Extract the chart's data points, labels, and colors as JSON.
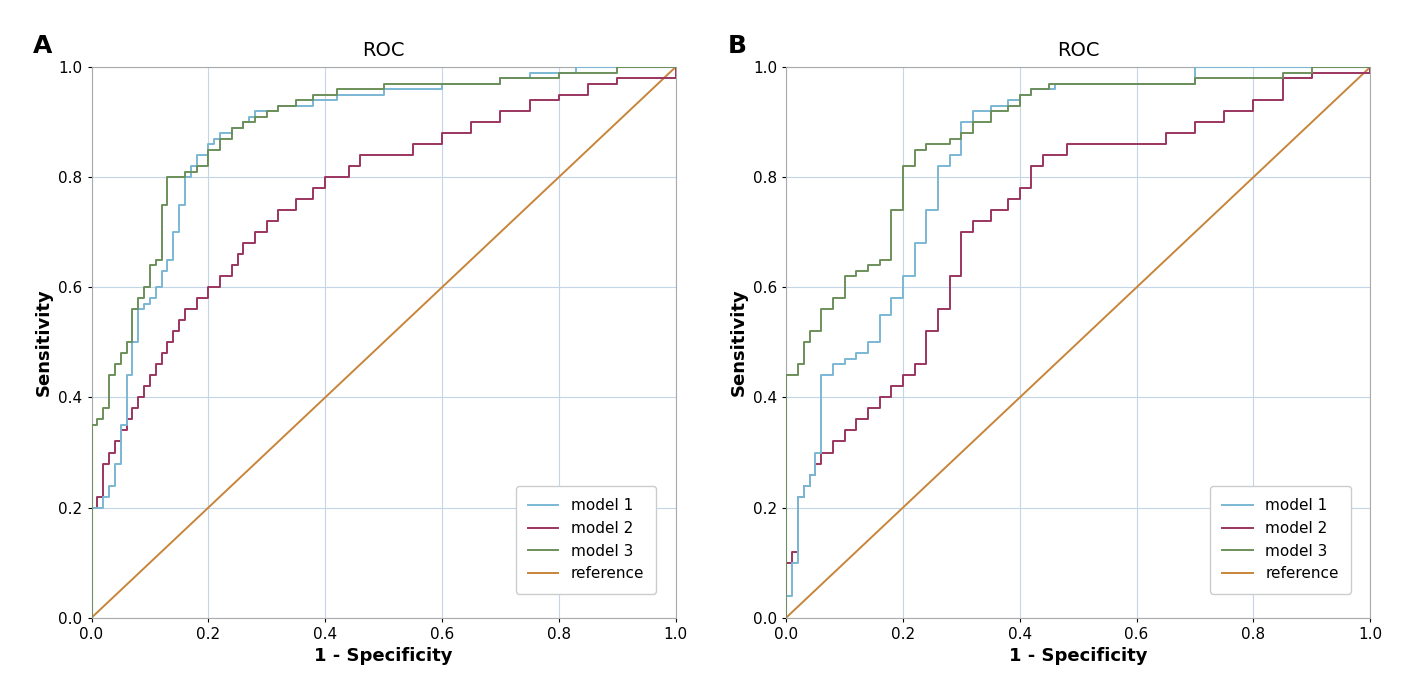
{
  "title": "ROC",
  "xlabel": "1 - Specificity",
  "ylabel": "Sensitivity",
  "xlim": [
    0.0,
    1.0
  ],
  "ylim": [
    0.0,
    1.0
  ],
  "xticks": [
    0.0,
    0.2,
    0.4,
    0.6,
    0.8,
    1.0
  ],
  "yticks": [
    0.0,
    0.2,
    0.4,
    0.6,
    0.8,
    1.0
  ],
  "colors": {
    "model1": "#7ab8d4",
    "model2": "#9b3560",
    "model3": "#6b8f5a",
    "reference": "#c8853a"
  },
  "panel_A": {
    "model1": {
      "fpr": [
        0.0,
        0.0,
        0.02,
        0.03,
        0.04,
        0.05,
        0.06,
        0.07,
        0.08,
        0.09,
        0.1,
        0.11,
        0.12,
        0.13,
        0.14,
        0.15,
        0.16,
        0.17,
        0.18,
        0.2,
        0.21,
        0.22,
        0.24,
        0.26,
        0.27,
        0.28,
        0.3,
        0.32,
        0.35,
        0.38,
        0.4,
        0.42,
        0.45,
        0.5,
        0.55,
        0.6,
        0.63,
        0.65,
        0.7,
        0.75,
        0.8,
        0.83,
        0.85,
        0.9,
        1.0
      ],
      "tpr": [
        0.0,
        0.2,
        0.22,
        0.24,
        0.28,
        0.35,
        0.44,
        0.5,
        0.56,
        0.57,
        0.58,
        0.6,
        0.63,
        0.65,
        0.7,
        0.75,
        0.8,
        0.82,
        0.84,
        0.86,
        0.87,
        0.88,
        0.89,
        0.9,
        0.91,
        0.92,
        0.92,
        0.93,
        0.93,
        0.94,
        0.94,
        0.95,
        0.95,
        0.96,
        0.96,
        0.97,
        0.97,
        0.97,
        0.98,
        0.99,
        0.99,
        1.0,
        1.0,
        1.0,
        1.0
      ]
    },
    "model2": {
      "fpr": [
        0.0,
        0.0,
        0.01,
        0.02,
        0.03,
        0.04,
        0.05,
        0.06,
        0.07,
        0.08,
        0.09,
        0.1,
        0.11,
        0.12,
        0.13,
        0.14,
        0.15,
        0.16,
        0.18,
        0.2,
        0.22,
        0.24,
        0.25,
        0.26,
        0.28,
        0.3,
        0.32,
        0.35,
        0.38,
        0.4,
        0.42,
        0.44,
        0.46,
        0.5,
        0.55,
        0.6,
        0.62,
        0.65,
        0.7,
        0.75,
        0.8,
        0.85,
        0.9,
        1.0
      ],
      "tpr": [
        0.0,
        0.2,
        0.22,
        0.28,
        0.3,
        0.32,
        0.34,
        0.36,
        0.38,
        0.4,
        0.42,
        0.44,
        0.46,
        0.48,
        0.5,
        0.52,
        0.54,
        0.56,
        0.58,
        0.6,
        0.62,
        0.64,
        0.66,
        0.68,
        0.7,
        0.72,
        0.74,
        0.76,
        0.78,
        0.8,
        0.8,
        0.82,
        0.84,
        0.84,
        0.86,
        0.88,
        0.88,
        0.9,
        0.92,
        0.94,
        0.95,
        0.97,
        0.98,
        1.0
      ]
    },
    "model3": {
      "fpr": [
        0.0,
        0.0,
        0.01,
        0.02,
        0.03,
        0.04,
        0.05,
        0.06,
        0.07,
        0.08,
        0.09,
        0.1,
        0.11,
        0.12,
        0.13,
        0.14,
        0.16,
        0.18,
        0.2,
        0.22,
        0.24,
        0.26,
        0.28,
        0.3,
        0.32,
        0.35,
        0.38,
        0.42,
        0.46,
        0.5,
        0.55,
        0.6,
        0.7,
        0.8,
        0.9,
        1.0
      ],
      "tpr": [
        0.0,
        0.35,
        0.36,
        0.38,
        0.44,
        0.46,
        0.48,
        0.5,
        0.56,
        0.58,
        0.6,
        0.64,
        0.65,
        0.75,
        0.8,
        0.8,
        0.81,
        0.82,
        0.85,
        0.87,
        0.89,
        0.9,
        0.91,
        0.92,
        0.93,
        0.94,
        0.95,
        0.96,
        0.96,
        0.97,
        0.97,
        0.97,
        0.98,
        0.99,
        1.0,
        1.0
      ]
    }
  },
  "panel_B": {
    "model1": {
      "fpr": [
        0.0,
        0.0,
        0.01,
        0.02,
        0.03,
        0.04,
        0.05,
        0.06,
        0.08,
        0.1,
        0.12,
        0.14,
        0.16,
        0.18,
        0.2,
        0.22,
        0.24,
        0.26,
        0.28,
        0.3,
        0.32,
        0.35,
        0.38,
        0.4,
        0.42,
        0.44,
        0.46,
        0.5,
        0.55,
        0.6,
        0.65,
        0.7,
        0.75,
        0.8,
        0.85,
        0.9,
        1.0
      ],
      "tpr": [
        0.0,
        0.04,
        0.1,
        0.22,
        0.24,
        0.26,
        0.3,
        0.44,
        0.46,
        0.47,
        0.48,
        0.5,
        0.55,
        0.58,
        0.62,
        0.68,
        0.74,
        0.82,
        0.84,
        0.9,
        0.92,
        0.93,
        0.94,
        0.95,
        0.96,
        0.96,
        0.97,
        0.97,
        0.97,
        0.97,
        0.97,
        1.0,
        1.0,
        1.0,
        1.0,
        1.0,
        1.0
      ]
    },
    "model2": {
      "fpr": [
        0.0,
        0.0,
        0.01,
        0.02,
        0.03,
        0.04,
        0.05,
        0.06,
        0.08,
        0.1,
        0.12,
        0.14,
        0.16,
        0.18,
        0.2,
        0.22,
        0.24,
        0.26,
        0.28,
        0.3,
        0.32,
        0.35,
        0.38,
        0.4,
        0.42,
        0.44,
        0.46,
        0.48,
        0.5,
        0.55,
        0.6,
        0.65,
        0.7,
        0.75,
        0.8,
        0.85,
        0.9,
        1.0
      ],
      "tpr": [
        0.0,
        0.1,
        0.12,
        0.22,
        0.24,
        0.26,
        0.28,
        0.3,
        0.32,
        0.34,
        0.36,
        0.38,
        0.4,
        0.42,
        0.44,
        0.46,
        0.52,
        0.56,
        0.62,
        0.7,
        0.72,
        0.74,
        0.76,
        0.78,
        0.82,
        0.84,
        0.84,
        0.86,
        0.86,
        0.86,
        0.86,
        0.88,
        0.9,
        0.92,
        0.94,
        0.98,
        0.99,
        1.0
      ]
    },
    "model3": {
      "fpr": [
        0.0,
        0.0,
        0.02,
        0.03,
        0.04,
        0.06,
        0.08,
        0.1,
        0.12,
        0.14,
        0.16,
        0.18,
        0.2,
        0.22,
        0.24,
        0.26,
        0.28,
        0.3,
        0.32,
        0.35,
        0.38,
        0.4,
        0.42,
        0.45,
        0.5,
        0.55,
        0.58,
        0.6,
        0.65,
        0.7,
        0.75,
        0.8,
        0.85,
        0.9,
        1.0
      ],
      "tpr": [
        0.0,
        0.44,
        0.46,
        0.5,
        0.52,
        0.56,
        0.58,
        0.62,
        0.63,
        0.64,
        0.65,
        0.74,
        0.82,
        0.85,
        0.86,
        0.86,
        0.87,
        0.88,
        0.9,
        0.92,
        0.93,
        0.95,
        0.96,
        0.97,
        0.97,
        0.97,
        0.97,
        0.97,
        0.97,
        0.98,
        0.98,
        0.98,
        0.99,
        1.0,
        1.0
      ]
    }
  },
  "legend_labels": [
    "model 1",
    "model 2",
    "model 3",
    "reference"
  ],
  "background_color": "#ffffff",
  "grid_color": "#c5d5e8",
  "label_fontsize": 13,
  "title_fontsize": 14,
  "tick_fontsize": 11,
  "legend_fontsize": 11,
  "linewidth": 1.4
}
